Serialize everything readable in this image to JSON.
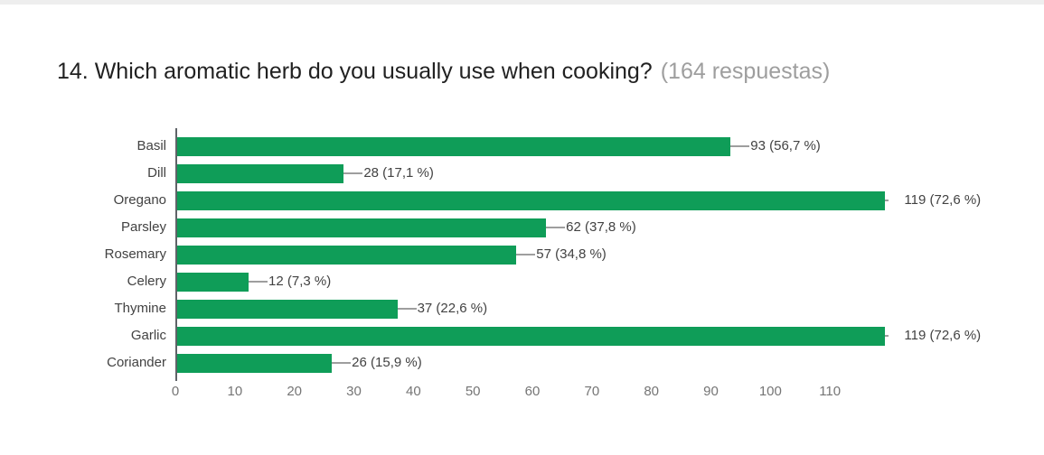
{
  "page": {
    "title": "14. Which aromatic herb do you usually use when cooking?",
    "response_count": "(164 respuestas)"
  },
  "chart_data": {
    "type": "bar",
    "orientation": "horizontal",
    "title": "14. Which aromatic herb do you usually use when cooking?",
    "subtitle": "(164 respuestas)",
    "categories": [
      "Basil",
      "Dill",
      "Oregano",
      "Parsley",
      "Rosemary",
      "Celery",
      "Thymine",
      "Garlic",
      "Coriander"
    ],
    "values": [
      93,
      28,
      119,
      62,
      57,
      12,
      37,
      119,
      26
    ],
    "value_labels": [
      "93 (56,7 %)",
      "28 (17,1 %)",
      "119 (72,6 %)",
      "62 (37,8 %)",
      "57 (34,8 %)",
      "12 (7,3 %)",
      "37 (22,6 %)",
      "119 (72,6 %)",
      "26 (15,9 %)"
    ],
    "x_ticks": [
      0,
      10,
      20,
      30,
      40,
      50,
      60,
      70,
      80,
      90,
      100,
      110
    ],
    "xlim": [
      0,
      120
    ],
    "xlabel": "",
    "ylabel": "",
    "grid": false,
    "legend": "none",
    "colors": {
      "bar": "#0f9d58",
      "axis": "#5f6368",
      "category_label": "#424242",
      "value_label": "#424242",
      "tick_label": "#757575",
      "leader_line": "#9e9e9e"
    }
  }
}
